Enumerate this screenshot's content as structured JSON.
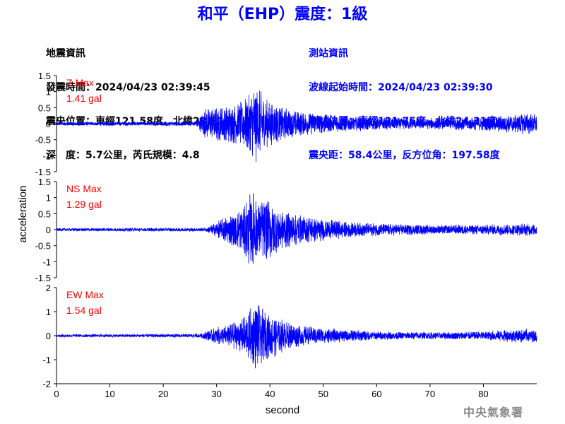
{
  "title": "和平（EHP）震度：1級",
  "event_info": {
    "heading": "地震資訊",
    "origin_time": "發震時間：2024/04/23 02:39:45",
    "epicenter": "震央位置：東經121.58度，北緯23.81度",
    "depth_magnitude": "深　度：5.7公里，芮氏規模：4.8"
  },
  "station_info": {
    "heading": "測站資訊",
    "wave_start": "波線起始時間：2024/04/23 02:39:30",
    "location": "測站位置：東經121.75度，北緯24.31度",
    "distance": "震央距：58.4公里，反方位角：197.58度"
  },
  "watermark": "中央氣象署",
  "chart_data": {
    "type": "line",
    "xlabel": "second",
    "ylabel": "acceleration",
    "xlim": [
      0,
      90
    ],
    "x_ticks": [
      0,
      10,
      20,
      30,
      40,
      50,
      60,
      70,
      80
    ],
    "x_tick_labels": [
      "0",
      "10",
      "20",
      "30",
      "40",
      "50",
      "60",
      "70",
      "80"
    ],
    "line_color": "#0000ff",
    "label_color": "#ff0000",
    "panels": [
      {
        "component": "Z",
        "max_label": "Z Max",
        "max_value": "1.41 gal",
        "ylim": [
          -1.5,
          1.5
        ],
        "y_ticks": [
          1.5,
          1,
          0.5,
          0,
          -0.5,
          -1,
          -1.5
        ],
        "y_tick_labels": [
          "1.5",
          "1",
          "0.5",
          "0",
          "-0.5",
          "-1",
          "-1.5"
        ],
        "envelope": [
          [
            0,
            0.06
          ],
          [
            26,
            0.07
          ],
          [
            28,
            0.5
          ],
          [
            30,
            0.55
          ],
          [
            34,
            0.65
          ],
          [
            36,
            0.9
          ],
          [
            37.5,
            1.3
          ],
          [
            39,
            0.8
          ],
          [
            42,
            0.55
          ],
          [
            46,
            0.38
          ],
          [
            52,
            0.28
          ],
          [
            60,
            0.2
          ],
          [
            70,
            0.18
          ],
          [
            75,
            0.2
          ],
          [
            80,
            0.22
          ],
          [
            85,
            0.3
          ],
          [
            88,
            0.35
          ],
          [
            90,
            0.3
          ]
        ]
      },
      {
        "component": "NS",
        "max_label": "NS Max",
        "max_value": "1.29 gal",
        "ylim": [
          -1.5,
          1.5
        ],
        "y_ticks": [
          1.5,
          1,
          0.5,
          0,
          -0.5,
          -1,
          -1.5
        ],
        "y_tick_labels": [
          "1.5",
          "1",
          "0.5",
          "0",
          "-0.5",
          "-1",
          "-1.5"
        ],
        "envelope": [
          [
            0,
            0.05
          ],
          [
            28,
            0.06
          ],
          [
            30,
            0.25
          ],
          [
            32,
            0.45
          ],
          [
            34,
            0.6
          ],
          [
            36,
            1.1
          ],
          [
            37,
            1.25
          ],
          [
            38,
            0.9
          ],
          [
            40,
            1.0
          ],
          [
            42,
            0.65
          ],
          [
            45,
            0.5
          ],
          [
            50,
            0.35
          ],
          [
            55,
            0.25
          ],
          [
            60,
            0.2
          ],
          [
            70,
            0.15
          ],
          [
            80,
            0.16
          ],
          [
            88,
            0.2
          ],
          [
            90,
            0.18
          ]
        ]
      },
      {
        "component": "EW",
        "max_label": "EW Max",
        "max_value": "1.54 gal",
        "ylim": [
          -2,
          2
        ],
        "y_ticks": [
          2,
          1,
          0,
          -1,
          -2
        ],
        "y_tick_labels": [
          "2",
          "1",
          "0",
          "-1",
          "-2"
        ],
        "envelope": [
          [
            0,
            0.06
          ],
          [
            27,
            0.08
          ],
          [
            29,
            0.3
          ],
          [
            32,
            0.45
          ],
          [
            35,
            0.75
          ],
          [
            36.5,
            1.2
          ],
          [
            37.5,
            1.5
          ],
          [
            39,
            1.0
          ],
          [
            41,
            0.9
          ],
          [
            43,
            0.6
          ],
          [
            47,
            0.4
          ],
          [
            52,
            0.3
          ],
          [
            60,
            0.18
          ],
          [
            70,
            0.15
          ],
          [
            80,
            0.18
          ],
          [
            87,
            0.3
          ],
          [
            90,
            0.28
          ]
        ]
      }
    ]
  }
}
